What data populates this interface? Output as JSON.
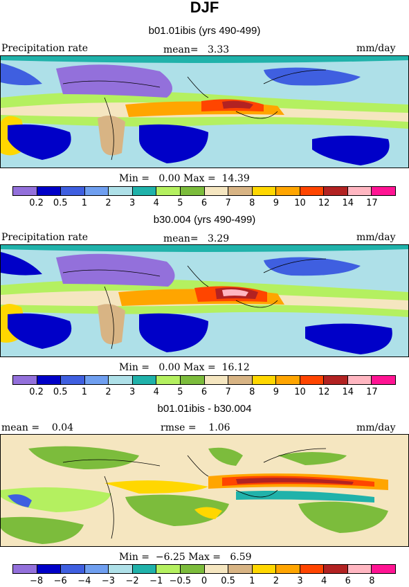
{
  "title": "DJF",
  "panels": [
    {
      "subtitle": "b01.01ibis (yrs 490-499)",
      "left_label": "Precipitation rate",
      "center_label": "mean=   3.33",
      "right_label": "mm/day",
      "minmax": "Min =   0.00 Max =  14.39",
      "kind": "abs"
    },
    {
      "subtitle": "b30.004 (yrs 490-499)",
      "left_label": "Precipitation rate",
      "center_label": "mean=   3.29",
      "right_label": "mm/day",
      "minmax": "Min =   0.00 Max =  16.12",
      "kind": "abs"
    },
    {
      "subtitle": "b01.01ibis - b30.004",
      "left_label": "mean =    0.04",
      "center_label": "rmse =    1.06",
      "right_label": "mm/day",
      "minmax": "Min =  −6.25 Max =   6.59",
      "kind": "diff"
    }
  ],
  "chart_data": [
    {
      "type": "heatmap",
      "title": "b01.01ibis (yrs 490-499)",
      "variable": "Precipitation rate",
      "units": "mm/day",
      "mean": 3.33,
      "min": 0.0,
      "max": 14.39,
      "colorbar_levels": [
        0.2,
        0.5,
        1,
        2,
        3,
        4,
        5,
        6,
        7,
        8,
        9,
        10,
        12,
        14,
        17
      ],
      "colorbar_labels": [
        "0.2",
        "0.5",
        "1",
        "2",
        "3",
        "4",
        "5",
        "6",
        "7",
        "8",
        "9",
        "10",
        "12",
        "14",
        "17"
      ]
    },
    {
      "type": "heatmap",
      "title": "b30.004 (yrs 490-499)",
      "variable": "Precipitation rate",
      "units": "mm/day",
      "mean": 3.29,
      "min": 0.0,
      "max": 16.12,
      "colorbar_levels": [
        0.2,
        0.5,
        1,
        2,
        3,
        4,
        5,
        6,
        7,
        8,
        9,
        10,
        12,
        14,
        17
      ],
      "colorbar_labels": [
        "0.2",
        "0.5",
        "1",
        "2",
        "3",
        "4",
        "5",
        "6",
        "7",
        "8",
        "9",
        "10",
        "12",
        "14",
        "17"
      ]
    },
    {
      "type": "heatmap",
      "title": "b01.01ibis - b30.004",
      "units": "mm/day",
      "mean": 0.04,
      "rmse": 1.06,
      "min": -6.25,
      "max": 6.59,
      "colorbar_levels": [
        -8,
        -6,
        -4,
        -3,
        -2,
        -1,
        -0.5,
        0,
        0.5,
        1,
        2,
        3,
        4,
        6,
        8
      ],
      "colorbar_labels": [
        "−8",
        "−6",
        "−4",
        "−3",
        "−2",
        "−1",
        "−0.5",
        "0",
        "0.5",
        "1",
        "2",
        "3",
        "4",
        "6",
        "8"
      ]
    }
  ],
  "colors": {
    "scale": [
      "#9370db",
      "#0000c8",
      "#3f5fe0",
      "#6f9ff0",
      "#aee0e8",
      "#20b2aa",
      "#b4f060",
      "#7cbc3c",
      "#f5e6c0",
      "#d8b484",
      "#ffd700",
      "#ffa500",
      "#ff4500",
      "#b22222",
      "#ffb6c1",
      "#ff1493"
    ]
  }
}
